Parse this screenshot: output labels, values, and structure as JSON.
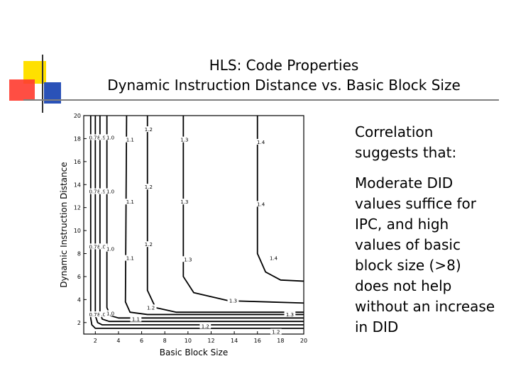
{
  "slide": {
    "title_line1": "HLS: Code Properties",
    "title_line2": "Dynamic Instruction Distance vs. Basic Block Size",
    "bullets": [
      "Correlation suggests that:",
      "Moderate DID values suffice for IPC, and high values of basic block size (>8) does not help without an increase in DID"
    ]
  },
  "chart_data": {
    "type": "contour",
    "title": "",
    "xlabel": "Basic Block Size",
    "ylabel": "Dynamic Instruction Distance",
    "xlim": [
      1,
      20
    ],
    "ylim": [
      1,
      20
    ],
    "xticks": [
      2,
      4,
      6,
      8,
      10,
      12,
      14,
      16,
      18,
      20
    ],
    "yticks": [
      2,
      4,
      6,
      8,
      10,
      12,
      14,
      16,
      18,
      20
    ],
    "contours": [
      {
        "level": "0.7",
        "points": [
          [
            1.6,
            20
          ],
          [
            1.6,
            2.4
          ],
          [
            1.7,
            1.8
          ],
          [
            2,
            1.5
          ],
          [
            20,
            1.5
          ]
        ]
      },
      {
        "level": "0.8",
        "points": [
          [
            2.0,
            20
          ],
          [
            2.0,
            2.6
          ],
          [
            2.2,
            2.0
          ],
          [
            2.6,
            1.8
          ],
          [
            20,
            1.8
          ]
        ]
      },
      {
        "level": "0.9",
        "points": [
          [
            2.4,
            20
          ],
          [
            2.4,
            2.9
          ],
          [
            2.6,
            2.3
          ],
          [
            3.2,
            2.1
          ],
          [
            20,
            2.1
          ]
        ]
      },
      {
        "level": "1.0",
        "points": [
          [
            3.0,
            20
          ],
          [
            3.0,
            3.3
          ],
          [
            3.3,
            2.6
          ],
          [
            4.0,
            2.4
          ],
          [
            20,
            2.4
          ]
        ]
      },
      {
        "level": "1.1",
        "points": [
          [
            4.7,
            20
          ],
          [
            4.6,
            3.8
          ],
          [
            5.0,
            2.9
          ],
          [
            6.5,
            2.7
          ],
          [
            20,
            2.7
          ]
        ]
      },
      {
        "level": "1.2",
        "points": [
          [
            6.5,
            20
          ],
          [
            6.5,
            4.8
          ],
          [
            7.2,
            3.3
          ],
          [
            9.0,
            2.9
          ],
          [
            20,
            2.9
          ]
        ]
      },
      {
        "level": "1.3",
        "points": [
          [
            9.6,
            20
          ],
          [
            9.6,
            6.0
          ],
          [
            10.5,
            4.6
          ],
          [
            13.5,
            3.9
          ],
          [
            20,
            3.7
          ]
        ]
      },
      {
        "level": "1.4",
        "points": [
          [
            16.0,
            20
          ],
          [
            16.0,
            8.0
          ],
          [
            16.7,
            6.4
          ],
          [
            18.0,
            5.7
          ],
          [
            20,
            5.6
          ]
        ]
      }
    ],
    "contour_labels": [
      {
        "text": "0.7",
        "x": 1.8,
        "y": 18.0
      },
      {
        "text": "8",
        "x": 2.3,
        "y": 18.0
      },
      {
        "text": ".9",
        "x": 2.7,
        "y": 18.0
      },
      {
        "text": "1.0",
        "x": 3.3,
        "y": 18.0
      },
      {
        "text": "0.7",
        "x": 1.8,
        "y": 13.3
      },
      {
        "text": "8",
        "x": 2.3,
        "y": 13.3
      },
      {
        "text": ".9",
        "x": 2.7,
        "y": 13.3
      },
      {
        "text": "1.0",
        "x": 3.3,
        "y": 13.3
      },
      {
        "text": "0.7",
        "x": 1.8,
        "y": 8.5
      },
      {
        "text": "8",
        "x": 2.3,
        "y": 8.5
      },
      {
        "text": ".0",
        "x": 2.7,
        "y": 8.5
      },
      {
        "text": "1.0",
        "x": 3.3,
        "y": 8.3
      },
      {
        "text": "0.7",
        "x": 1.8,
        "y": 2.6
      },
      {
        "text": "8",
        "x": 2.3,
        "y": 2.6
      },
      {
        "text": ".0",
        "x": 2.7,
        "y": 2.6
      },
      {
        "text": "1.0",
        "x": 3.3,
        "y": 2.7
      },
      {
        "text": "1.1",
        "x": 5.0,
        "y": 17.8
      },
      {
        "text": "1.1",
        "x": 5.0,
        "y": 12.4
      },
      {
        "text": "1.1",
        "x": 5.0,
        "y": 7.5
      },
      {
        "text": "1.1",
        "x": 5.5,
        "y": 2.2
      },
      {
        "text": "1.2",
        "x": 6.6,
        "y": 18.7
      },
      {
        "text": "1.2",
        "x": 6.6,
        "y": 13.7
      },
      {
        "text": "1.2",
        "x": 6.6,
        "y": 8.7
      },
      {
        "text": "1.2",
        "x": 6.8,
        "y": 3.2
      },
      {
        "text": "1.2",
        "x": 11.5,
        "y": 1.6
      },
      {
        "text": "1.2",
        "x": 17.6,
        "y": 1.1
      },
      {
        "text": "1.3",
        "x": 9.7,
        "y": 17.8
      },
      {
        "text": "1.3",
        "x": 9.7,
        "y": 12.4
      },
      {
        "text": "1.3",
        "x": 10.0,
        "y": 7.4
      },
      {
        "text": "1.3",
        "x": 13.9,
        "y": 3.8
      },
      {
        "text": "1.3",
        "x": 18.8,
        "y": 2.6
      },
      {
        "text": "1.4",
        "x": 16.3,
        "y": 17.6
      },
      {
        "text": "1.4",
        "x": 16.3,
        "y": 12.2
      },
      {
        "text": "1.4",
        "x": 17.4,
        "y": 7.5
      }
    ]
  }
}
